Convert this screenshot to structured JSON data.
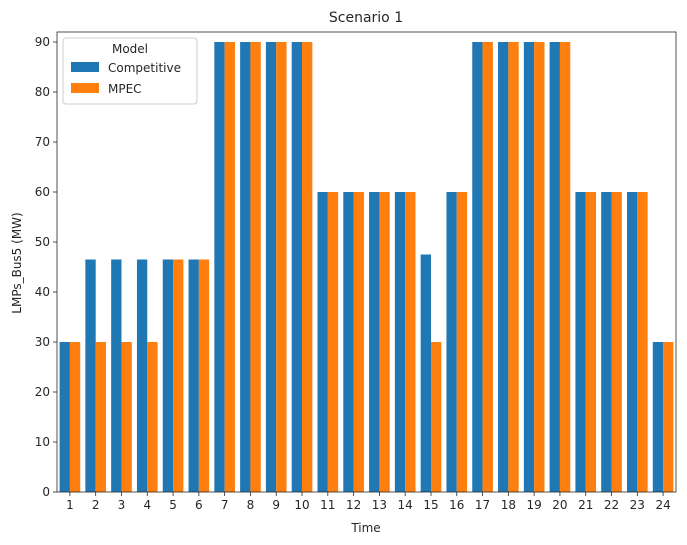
{
  "chart_data": {
    "type": "bar",
    "title": "Scenario 1",
    "xlabel": "Time",
    "ylabel": "LMPs_Bus5 (MW)",
    "categories": [
      "1",
      "2",
      "3",
      "4",
      "5",
      "6",
      "7",
      "8",
      "9",
      "10",
      "11",
      "12",
      "13",
      "14",
      "15",
      "16",
      "17",
      "18",
      "19",
      "20",
      "21",
      "22",
      "23",
      "24"
    ],
    "ylim": [
      0,
      92
    ],
    "yticks": [
      0,
      10,
      20,
      30,
      40,
      50,
      60,
      70,
      80,
      90
    ],
    "grid": false,
    "legend": {
      "title": "Model",
      "placement": "top-left"
    },
    "series": [
      {
        "name": "Competitive",
        "color": "#1f77b4",
        "values": [
          30,
          46.5,
          46.5,
          46.5,
          46.5,
          46.5,
          90,
          90,
          90,
          90,
          60,
          60,
          60,
          60,
          47.5,
          60,
          90,
          90,
          90,
          90,
          60,
          60,
          60,
          30
        ]
      },
      {
        "name": "MPEC",
        "color": "#ff7f0e",
        "values": [
          30,
          30,
          30,
          30,
          46.5,
          46.5,
          90,
          90,
          90,
          90,
          60,
          60,
          60,
          60,
          30,
          60,
          90,
          90,
          90,
          90,
          60,
          60,
          60,
          30
        ]
      }
    ]
  }
}
